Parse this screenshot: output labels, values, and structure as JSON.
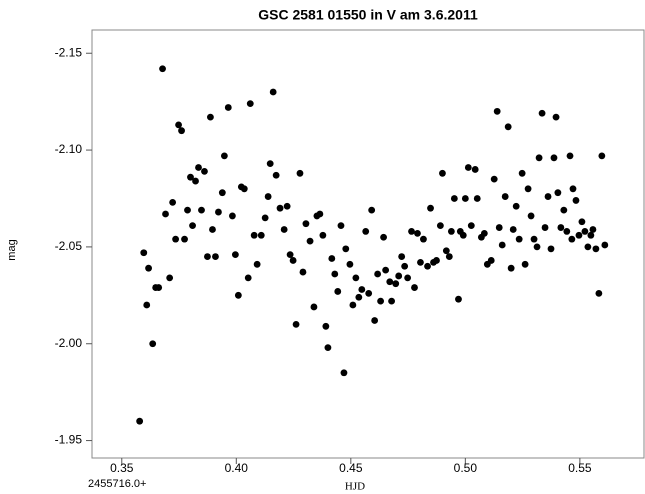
{
  "chart_data": {
    "type": "scatter",
    "title": "GSC 2581 01550 in V am 3.6.2011",
    "x_label": "HJD",
    "x_offset_label": "2455716.0+",
    "y_label": "mag",
    "color": "#000000",
    "grid": false,
    "xlim": [
      0.337,
      0.578
    ],
    "ylim": [
      -1.941,
      -2.162
    ],
    "xticks": [
      0.35,
      {
        "value": 0.4,
        "label": "0.40"
      },
      0.45,
      {
        "value": 0.5,
        "label": "0.50"
      },
      0.55
    ],
    "yticks": [
      -2.15,
      {
        "value": -2.1,
        "label": "-2.10"
      },
      -2.05,
      {
        "value": -2,
        "label": "-2.00"
      },
      -1.95
    ],
    "x": [
      0.3578,
      0.3596,
      0.3609,
      0.3617,
      0.3635,
      0.3648,
      0.3661,
      0.3678,
      0.3691,
      0.3709,
      0.3722,
      0.3735,
      0.3748,
      0.3761,
      0.3774,
      0.3787,
      0.38,
      0.3809,
      0.3822,
      0.3835,
      0.3848,
      0.3861,
      0.3874,
      0.3887,
      0.3896,
      0.3909,
      0.3922,
      0.3939,
      0.3948,
      0.3965,
      0.3983,
      0.3996,
      0.4009,
      0.4022,
      0.4035,
      0.4052,
      0.4061,
      0.4078,
      0.4091,
      0.4109,
      0.4126,
      0.4139,
      0.4148,
      0.4161,
      0.4174,
      0.4191,
      0.4209,
      0.4222,
      0.4235,
      0.4248,
      0.4261,
      0.4278,
      0.4291,
      0.4304,
      0.4322,
      0.4339,
      0.4352,
      0.4365,
      0.4378,
      0.4391,
      0.44,
      0.4417,
      0.443,
      0.4443,
      0.4457,
      0.447,
      0.4478,
      0.4496,
      0.4509,
      0.4522,
      0.4535,
      0.4548,
      0.4565,
      0.4578,
      0.4591,
      0.4604,
      0.4617,
      0.463,
      0.4643,
      0.4652,
      0.467,
      0.4678,
      0.4696,
      0.4709,
      0.4722,
      0.4735,
      0.4748,
      0.4765,
      0.4778,
      0.4791,
      0.4804,
      0.4817,
      0.4835,
      0.4848,
      0.4861,
      0.4874,
      0.4891,
      0.49,
      0.4917,
      0.493,
      0.4939,
      0.4952,
      0.497,
      0.4978,
      0.4991,
      0.5,
      0.5013,
      0.5026,
      0.5043,
      0.5052,
      0.507,
      0.5083,
      0.5096,
      0.5113,
      0.5126,
      0.5139,
      0.5148,
      0.5161,
      0.5174,
      0.5187,
      0.52,
      0.5209,
      0.5222,
      0.5235,
      0.5248,
      0.5261,
      0.5274,
      0.5287,
      0.53,
      0.5313,
      0.5322,
      0.5335,
      0.5348,
      0.5361,
      0.5374,
      0.5387,
      0.5396,
      0.5404,
      0.5417,
      0.543,
      0.5443,
      0.5457,
      0.5465,
      0.547,
      0.5483,
      0.5496,
      0.5509,
      0.5522,
      0.5535,
      0.5548,
      0.5557,
      0.557,
      0.5583,
      0.5596,
      0.5609
    ],
    "values": [
      -1.96,
      -2.047,
      -2.02,
      -2.039,
      -2.0,
      -2.029,
      -2.029,
      -2.142,
      -2.067,
      -2.034,
      -2.073,
      -2.054,
      -2.113,
      -2.11,
      -2.054,
      -2.069,
      -2.086,
      -2.061,
      -2.084,
      -2.091,
      -2.069,
      -2.089,
      -2.045,
      -2.117,
      -2.059,
      -2.045,
      -2.068,
      -2.078,
      -2.097,
      -2.122,
      -2.066,
      -2.046,
      -2.025,
      -2.081,
      -2.08,
      -2.034,
      -2.124,
      -2.056,
      -2.041,
      -2.056,
      -2.065,
      -2.076,
      -2.093,
      -2.13,
      -2.087,
      -2.07,
      -2.059,
      -2.071,
      -2.046,
      -2.043,
      -2.01,
      -2.088,
      -2.037,
      -2.062,
      -2.053,
      -2.019,
      -2.066,
      -2.067,
      -2.056,
      -2.009,
      -1.998,
      -2.044,
      -2.036,
      -2.027,
      -2.061,
      -1.985,
      -2.049,
      -2.041,
      -2.02,
      -2.034,
      -2.024,
      -2.028,
      -2.058,
      -2.026,
      -2.069,
      -2.012,
      -2.036,
      -2.022,
      -2.055,
      -2.038,
      -2.032,
      -2.022,
      -2.031,
      -2.035,
      -2.045,
      -2.04,
      -2.034,
      -2.058,
      -2.029,
      -2.057,
      -2.042,
      -2.054,
      -2.04,
      -2.07,
      -2.042,
      -2.043,
      -2.061,
      -2.088,
      -2.048,
      -2.045,
      -2.058,
      -2.075,
      -2.023,
      -2.058,
      -2.056,
      -2.075,
      -2.091,
      -2.061,
      -2.09,
      -2.075,
      -2.055,
      -2.057,
      -2.041,
      -2.043,
      -2.085,
      -2.12,
      -2.06,
      -2.051,
      -2.076,
      -2.112,
      -2.039,
      -2.059,
      -2.071,
      -2.054,
      -2.088,
      -2.041,
      -2.08,
      -2.066,
      -2.054,
      -2.05,
      -2.096,
      -2.119,
      -2.06,
      -2.076,
      -2.049,
      -2.096,
      -2.117,
      -2.078,
      -2.06,
      -2.069,
      -2.058,
      -2.097,
      -2.054,
      -2.08,
      -2.074,
      -2.056,
      -2.063,
      -2.058,
      -2.05,
      -2.056,
      -2.059,
      -2.049,
      -2.026,
      -2.097,
      -2.051
    ]
  }
}
